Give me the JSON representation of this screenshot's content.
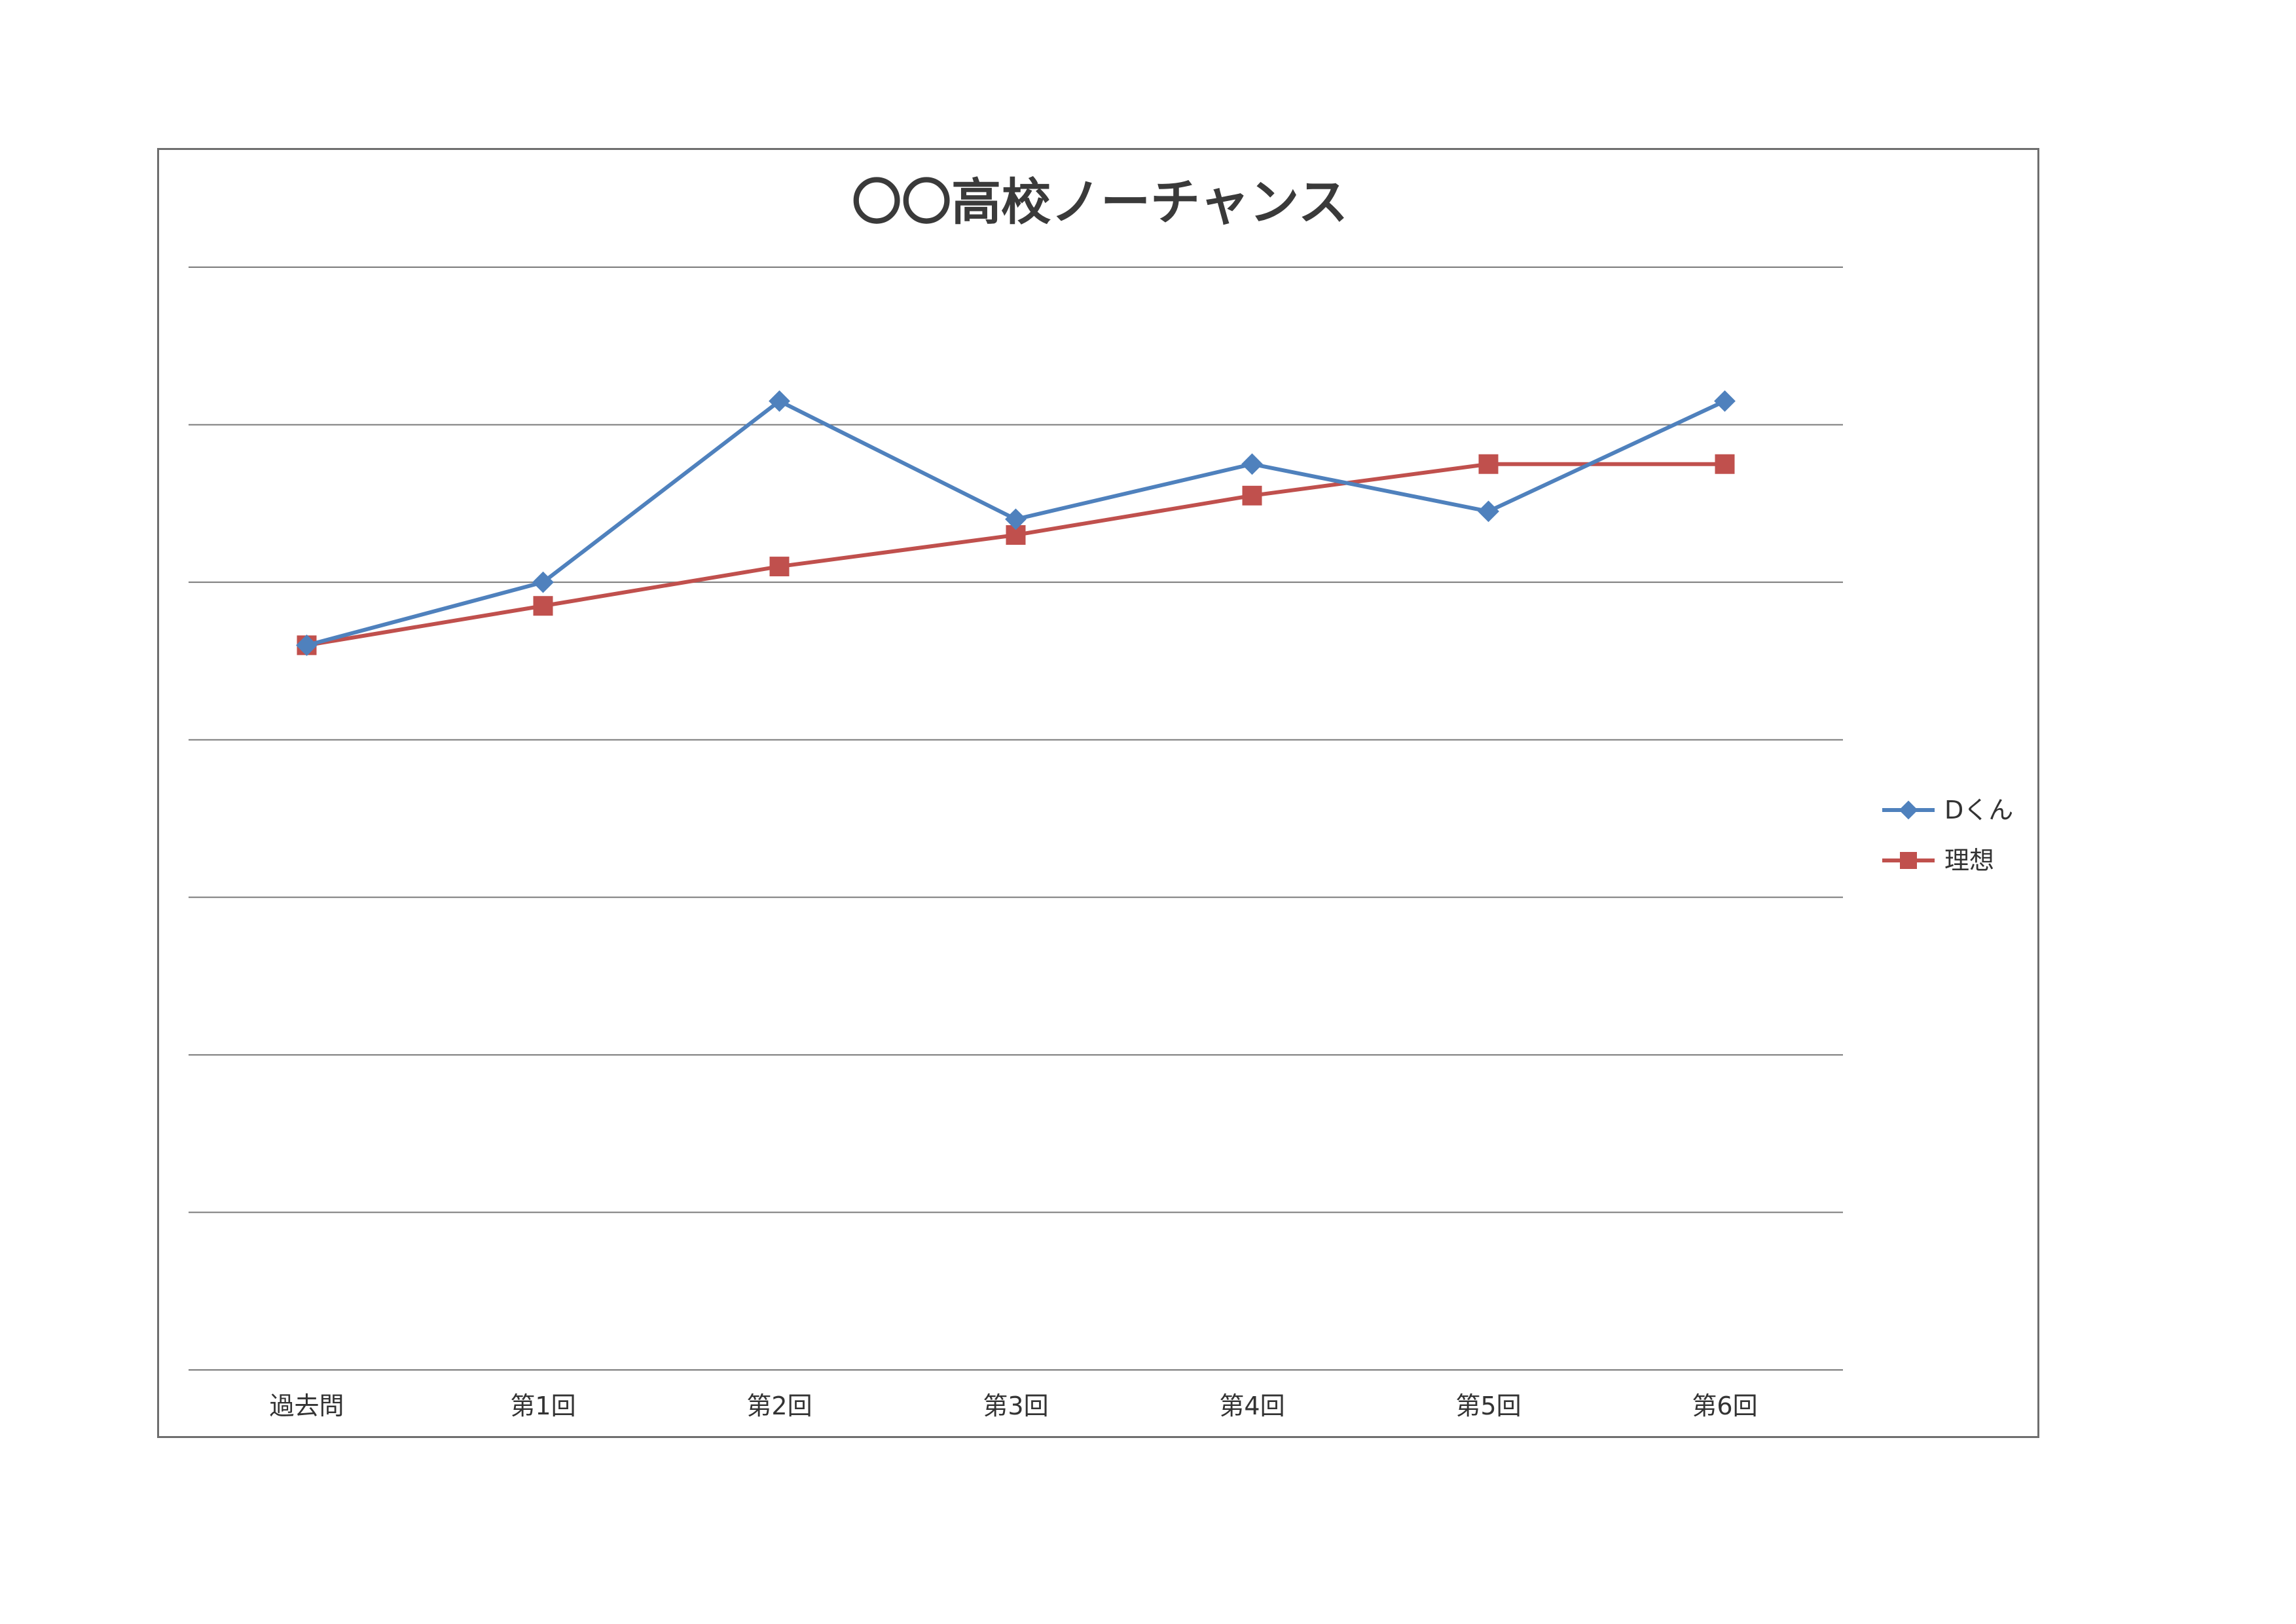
{
  "chart_data": {
    "type": "line",
    "title": "〇〇高校ノーチャンス",
    "xlabel": "",
    "ylabel": "",
    "categories": [
      "過去問",
      "第1回",
      "第2回",
      "第3回",
      "第4回",
      "第5回",
      "第6回"
    ],
    "ylim": [
      0,
      70
    ],
    "grid": true,
    "legend_position": "right",
    "series": [
      {
        "name": "Dくん",
        "color": "#4f81bd",
        "marker": "diamond",
        "values": [
          46,
          50,
          61.5,
          54,
          57.5,
          54.5,
          61.5
        ]
      },
      {
        "name": "理想",
        "color": "#c0504d",
        "marker": "square",
        "values": [
          46,
          48.5,
          51,
          53,
          55.5,
          57.5,
          57.5
        ]
      }
    ]
  }
}
